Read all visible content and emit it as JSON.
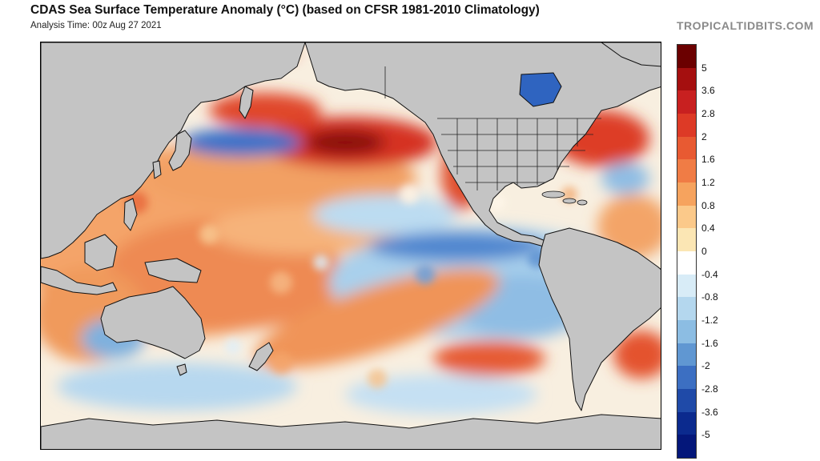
{
  "header": {
    "title": "CDAS Sea Surface Temperature Anomaly (°C) (based on CFSR 1981-2010 Climatology)",
    "analysis_time": "Analysis Time: 00z Aug 27 2021",
    "brand": "TROPICALTIDBITS.COM"
  },
  "colorbar": {
    "labels": [
      "5",
      "3.6",
      "2.8",
      "2",
      "1.6",
      "1.2",
      "0.8",
      "0.4",
      "0",
      "-0.4",
      "-0.8",
      "-1.2",
      "-1.6",
      "-2",
      "-2.8",
      "-3.6",
      "-5"
    ],
    "colors": [
      "#6b0000",
      "#a50f0f",
      "#c82020",
      "#dd3a26",
      "#e85a32",
      "#f07c45",
      "#f6a35e",
      "#fbc98a",
      "#fbe6b4",
      "#ffffff",
      "#d8ecf7",
      "#b4d7ee",
      "#8cbde3",
      "#6097d2",
      "#3c6fc2",
      "#1f4aa8",
      "#0b2a8e",
      "#04177a"
    ]
  },
  "map": {
    "land_color": "#c4c4c4",
    "ocean_neutral": "#f7f1e6"
  }
}
